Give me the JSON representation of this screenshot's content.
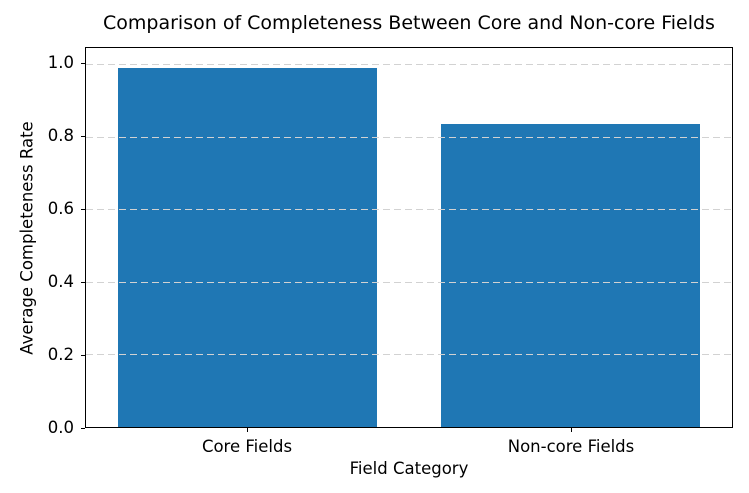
{
  "chart_data": {
    "type": "bar",
    "title": "Comparison of Completeness Between Core and Non-core Fields",
    "xlabel": "Field Category",
    "ylabel": "Average Completeness Rate",
    "categories": [
      "Core Fields",
      "Non-core Fields"
    ],
    "values": [
      0.99,
      0.835
    ],
    "ylim": [
      0,
      1.045
    ],
    "yticks": [
      {
        "value": 0.0,
        "label": "0.0"
      },
      {
        "value": 0.2,
        "label": "0.2"
      },
      {
        "value": 0.4,
        "label": "0.4"
      },
      {
        "value": 0.6,
        "label": "0.6"
      },
      {
        "value": 0.8,
        "label": "0.8"
      },
      {
        "value": 1.0,
        "label": "1.0"
      }
    ],
    "bar_color": "#1f77b4",
    "bar_width_fraction": 0.8,
    "grid": {
      "axis": "y",
      "line_style": "dashed",
      "color": "#d2d2d2",
      "above_bars": true
    },
    "legend_visible": false,
    "background_color": "#ffffff"
  }
}
